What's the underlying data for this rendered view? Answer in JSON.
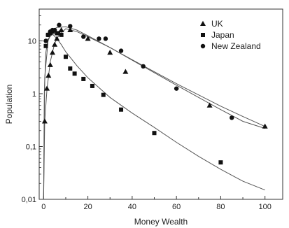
{
  "chart_data": {
    "type": "scatter",
    "xlabel": "Money Wealth",
    "ylabel": "Population",
    "xlim": [
      -2,
      108
    ],
    "ylim": [
      0.01,
      40
    ],
    "yscale": "log",
    "x_ticks": [
      0,
      20,
      40,
      60,
      80,
      100
    ],
    "x_tick_labels": [
      "0",
      "20",
      "40",
      "60",
      "80",
      "100"
    ],
    "y_ticks": [
      0.01,
      0.1,
      1,
      10
    ],
    "y_tick_labels": [
      "0,01",
      "0,1",
      "1",
      "10"
    ],
    "legend_position": "top-right",
    "series": [
      {
        "name": "UK",
        "marker": "triangle",
        "points": [
          [
            0.5,
            0.3
          ],
          [
            1.5,
            1.25
          ],
          [
            2.2,
            2.2
          ],
          [
            3,
            3.5
          ],
          [
            4,
            6
          ],
          [
            5,
            8.5
          ],
          [
            6,
            11
          ],
          [
            7,
            14
          ],
          [
            8,
            16
          ],
          [
            12,
            16
          ],
          [
            20,
            11
          ],
          [
            30,
            6
          ],
          [
            37,
            2.6
          ],
          [
            75,
            0.6
          ],
          [
            100,
            0.24
          ]
        ],
        "fit": [
          [
            0,
            0.01
          ],
          [
            0.5,
            0.3
          ],
          [
            1.5,
            1.2
          ],
          [
            3,
            4
          ],
          [
            5,
            9
          ],
          [
            7,
            13
          ],
          [
            10,
            17
          ],
          [
            15,
            15
          ],
          [
            20,
            12
          ],
          [
            30,
            7.5
          ],
          [
            40,
            4.4
          ],
          [
            50,
            2.6
          ],
          [
            60,
            1.55
          ],
          [
            70,
            0.95
          ],
          [
            80,
            0.58
          ],
          [
            90,
            0.37
          ],
          [
            100,
            0.24
          ]
        ]
      },
      {
        "name": "Japan",
        "marker": "square",
        "points": [
          [
            1,
            8
          ],
          [
            2,
            13
          ],
          [
            3,
            14
          ],
          [
            4,
            15
          ],
          [
            6,
            14
          ],
          [
            8,
            13
          ],
          [
            10,
            5
          ],
          [
            12,
            3
          ],
          [
            14,
            2.4
          ],
          [
            18,
            1.9
          ],
          [
            22,
            1.4
          ],
          [
            27,
            0.95
          ],
          [
            35,
            0.5
          ],
          [
            50,
            0.18
          ],
          [
            80,
            0.05
          ]
        ],
        "fit": [
          [
            0,
            0.01
          ],
          [
            0.3,
            1
          ],
          [
            1,
            6
          ],
          [
            2,
            11
          ],
          [
            4,
            13.5
          ],
          [
            6,
            11
          ],
          [
            8,
            8.5
          ],
          [
            10,
            6.2
          ],
          [
            15,
            3.4
          ],
          [
            20,
            2
          ],
          [
            30,
            0.85
          ],
          [
            40,
            0.43
          ],
          [
            50,
            0.23
          ],
          [
            60,
            0.12
          ],
          [
            70,
            0.065
          ],
          [
            80,
            0.037
          ],
          [
            90,
            0.022
          ],
          [
            100,
            0.015
          ]
        ]
      },
      {
        "name": "New Zealand",
        "marker": "circle",
        "points": [
          [
            1,
            10
          ],
          [
            2,
            13
          ],
          [
            3,
            15
          ],
          [
            4,
            16
          ],
          [
            5,
            16
          ],
          [
            7,
            20
          ],
          [
            12,
            19
          ],
          [
            18,
            12
          ],
          [
            25,
            11
          ],
          [
            28,
            11
          ],
          [
            35,
            6.5
          ],
          [
            45,
            3.3
          ],
          [
            60,
            1.25
          ],
          [
            85,
            0.35
          ]
        ],
        "fit": [
          [
            0,
            0.01
          ],
          [
            0.5,
            2
          ],
          [
            2,
            10
          ],
          [
            4,
            16
          ],
          [
            6,
            18
          ],
          [
            10,
            18.5
          ],
          [
            15,
            16
          ],
          [
            20,
            12.5
          ],
          [
            30,
            7.5
          ],
          [
            40,
            4.3
          ],
          [
            50,
            2.5
          ],
          [
            60,
            1.45
          ],
          [
            70,
            0.85
          ],
          [
            80,
            0.5
          ],
          [
            90,
            0.3
          ],
          [
            100,
            0.22
          ]
        ]
      }
    ]
  }
}
